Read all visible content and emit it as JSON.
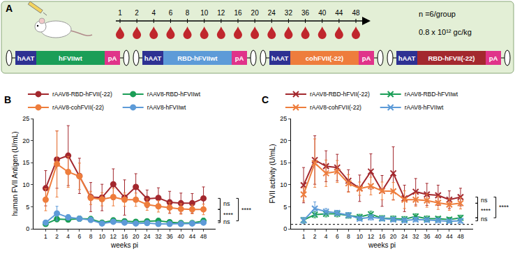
{
  "panel_a": {
    "label": "A",
    "timeline": {
      "weeks": [
        1,
        2,
        4,
        6,
        8,
        10,
        12,
        16,
        20,
        24,
        32,
        36,
        40,
        44,
        48
      ]
    },
    "group_note": "n =6/group",
    "dose": "0.8 x 10¹² gc/kg",
    "constructs": [
      [
        {
          "label": "hAAT",
          "color": "#2e3192"
        },
        {
          "label": "hFVIIwt",
          "color": "#1b9e57"
        },
        {
          "label": "pA",
          "color": "#e0338a"
        }
      ],
      [
        {
          "label": "hAAT",
          "color": "#2e3192"
        },
        {
          "label": "RBD-hFVIIwt",
          "color": "#5d9bd8"
        },
        {
          "label": "pA",
          "color": "#e0338a"
        }
      ],
      [
        {
          "label": "hAAT",
          "color": "#2e3192"
        },
        {
          "label": "cohFVII(-22)",
          "color": "#ee7d3c"
        },
        {
          "label": "pA",
          "color": "#e0338a"
        }
      ],
      [
        {
          "label": "hAAT",
          "color": "#2e3192"
        },
        {
          "label": "RBD-hFVII(-22)",
          "color": "#a3282e"
        },
        {
          "label": "pA",
          "color": "#e0338a"
        }
      ]
    ]
  },
  "chart_data": [
    {
      "type": "line",
      "panel": "B",
      "x_label": "weeks pi",
      "y_label": "human FVII Antigen (U/mL)",
      "categories": [
        1,
        2,
        4,
        6,
        8,
        10,
        12,
        16,
        20,
        24,
        32,
        36,
        40,
        44,
        48
      ],
      "ylim": [
        0,
        25
      ],
      "yticks": [
        0,
        5,
        10,
        15,
        20,
        25
      ],
      "marker": "circle",
      "series": [
        {
          "name": "rAAV8-RBD-hFVII(-22)",
          "color": "#a3282e",
          "values": [
            9.2,
            15.7,
            16.6,
            12.0,
            7.2,
            7.1,
            10.1,
            7.1,
            9.5,
            6.8,
            7.0,
            6.0,
            5.8,
            5.8,
            6.9
          ],
          "errors": [
            4.0,
            6.5,
            6.8,
            4.0,
            3.3,
            3.0,
            3.5,
            4.0,
            3.0,
            2.0,
            2.3,
            2.5,
            2.3,
            2.2,
            2.6
          ]
        },
        {
          "name": "rAAV8-RBD-hFVIIwt",
          "color": "#1b9e57",
          "values": [
            1.1,
            2.2,
            2.1,
            2.3,
            2.2,
            1.4,
            1.9,
            1.7,
            1.6,
            1.7,
            1.8,
            1.5,
            1.3,
            1.3,
            1.8
          ],
          "errors": [
            0.5,
            0.6,
            0.6,
            0.6,
            0.6,
            0.5,
            0.6,
            0.5,
            0.5,
            0.5,
            0.5,
            0.5,
            0.4,
            0.4,
            0.6
          ]
        },
        {
          "name": "rAAV8-cohFVII(-22)",
          "color": "#ee7d3c",
          "values": [
            6.6,
            14.7,
            12.9,
            11.9,
            7.0,
            6.7,
            7.2,
            6.6,
            6.6,
            5.5,
            5.1,
            4.8,
            4.5,
            4.4,
            4.4
          ],
          "errors": [
            2.5,
            7.5,
            3.5,
            3.0,
            1.5,
            1.5,
            2.0,
            1.5,
            1.5,
            1.3,
            1.3,
            1.2,
            1.2,
            1.0,
            1.2
          ]
        },
        {
          "name": "rAAV8-hFVIIwt",
          "color": "#5d9bd8",
          "values": [
            1.4,
            3.5,
            2.6,
            2.3,
            2.0,
            1.2,
            1.6,
            1.4,
            1.2,
            1.3,
            1.1,
            1.1,
            1.1,
            1.2,
            1.4
          ],
          "errors": [
            0.5,
            1.6,
            0.6,
            0.5,
            0.5,
            0.4,
            0.5,
            0.4,
            0.4,
            0.4,
            0.4,
            0.4,
            0.4,
            0.4,
            0.5
          ]
        }
      ],
      "annotations": [
        {
          "text": "ns",
          "between": [
            "rAAV8-RBD-hFVII(-22)",
            "rAAV8-cohFVII(-22)"
          ]
        },
        {
          "text": "****",
          "between": [
            "rAAV8-cohFVII(-22)",
            "rAAV8-RBD-hFVIIwt"
          ]
        },
        {
          "text": "****",
          "between": [
            "rAAV8-RBD-hFVII(-22)",
            "rAAV8-RBD-hFVIIwt"
          ]
        },
        {
          "text": "ns",
          "between": [
            "rAAV8-RBD-hFVIIwt",
            "rAAV8-hFVIIwt"
          ]
        }
      ]
    },
    {
      "type": "line",
      "panel": "C",
      "x_label": "weeks pi",
      "y_label": "FVII activity (U/mL)",
      "categories": [
        1,
        2,
        4,
        6,
        8,
        10,
        12,
        16,
        20,
        24,
        32,
        36,
        40,
        44,
        48
      ],
      "ylim": [
        0,
        25
      ],
      "yticks": [
        0,
        5,
        10,
        15,
        20,
        25
      ],
      "marker": "x",
      "reference_line": 1,
      "series": [
        {
          "name": "rAAV8-RBD-hFVII(-22)",
          "color": "#a3282e",
          "values": [
            9.9,
            15.6,
            14.2,
            13.9,
            10.9,
            9.2,
            13.0,
            8.6,
            12.6,
            6.9,
            8.4,
            7.8,
            7.6,
            6.6,
            7.2
          ],
          "errors": [
            4.0,
            5.5,
            3.5,
            3.0,
            2.5,
            3.0,
            4.0,
            3.5,
            6.0,
            3.0,
            3.0,
            2.5,
            2.3,
            2.0,
            2.0
          ]
        },
        {
          "name": "rAAV8-RBD-hFVIIwt",
          "color": "#1b9e57",
          "values": [
            2.0,
            3.2,
            3.4,
            3.4,
            3.0,
            2.7,
            3.3,
            2.4,
            2.3,
            2.2,
            2.8,
            2.3,
            2.3,
            2.1,
            2.5
          ],
          "errors": [
            0.6,
            0.7,
            0.7,
            0.7,
            0.6,
            0.6,
            0.7,
            0.6,
            0.6,
            0.6,
            0.6,
            0.6,
            0.5,
            0.5,
            0.6
          ]
        },
        {
          "name": "rAAV8-cohFVII(-22)",
          "color": "#ee7d3c",
          "values": [
            7.8,
            14.9,
            12.6,
            13.0,
            10.3,
            9.1,
            9.7,
            8.6,
            8.5,
            6.6,
            6.6,
            6.4,
            5.9,
            5.5,
            5.8
          ],
          "errors": [
            1.5,
            5.5,
            3.0,
            2.5,
            2.0,
            1.5,
            2.0,
            2.0,
            2.0,
            2.0,
            1.5,
            1.5,
            1.5,
            1.3,
            1.3
          ]
        },
        {
          "name": "rAAV8-hFVIIwt",
          "color": "#5d9bd8",
          "values": [
            1.9,
            4.6,
            3.9,
            3.6,
            3.1,
            2.3,
            2.6,
            2.3,
            2.1,
            1.9,
            2.1,
            2.0,
            1.9,
            1.7,
            1.8
          ],
          "errors": [
            0.7,
            1.5,
            0.7,
            0.6,
            0.6,
            0.5,
            0.6,
            0.5,
            0.5,
            0.5,
            0.5,
            0.5,
            0.5,
            0.4,
            0.5
          ]
        }
      ],
      "annotations": [
        {
          "text": "ns",
          "between": [
            "rAAV8-RBD-hFVII(-22)",
            "rAAV8-cohFVII(-22)"
          ]
        },
        {
          "text": "****",
          "between": [
            "rAAV8-cohFVII(-22)",
            "rAAV8-RBD-hFVIIwt"
          ]
        },
        {
          "text": "****",
          "between": [
            "rAAV8-RBD-hFVII(-22)",
            "rAAV8-RBD-hFVIIwt"
          ]
        },
        {
          "text": "ns",
          "between": [
            "rAAV8-RBD-hFVIIwt",
            "rAAV8-hFVIIwt"
          ]
        }
      ]
    }
  ]
}
